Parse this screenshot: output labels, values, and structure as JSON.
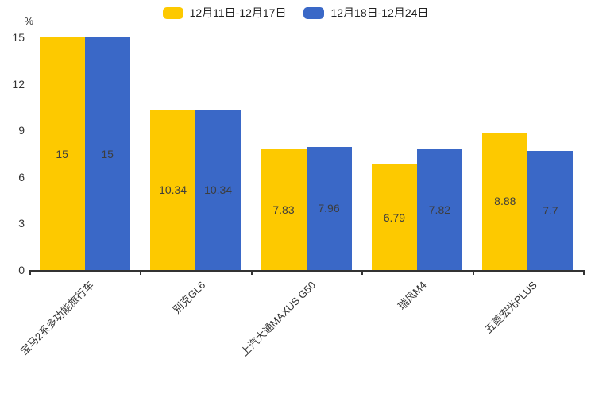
{
  "chart_data": {
    "type": "bar",
    "title": "",
    "categories": [
      "宝马2系多功能旅行车",
      "别克GL6",
      "上汽大通MAXUS G50",
      "瑞风M4",
      "五菱宏光PLUS"
    ],
    "series": [
      {
        "name": "12月11日-12月17日",
        "color": "#FDC900",
        "values": [
          15,
          10.34,
          7.83,
          6.79,
          8.88
        ]
      },
      {
        "name": "12月18日-12月24日",
        "color": "#3A68C7",
        "values": [
          15,
          10.34,
          7.96,
          7.82,
          7.7
        ]
      }
    ],
    "xlabel": "",
    "ylabel": "%",
    "ylim": [
      0,
      15
    ],
    "yticks": [
      0,
      3,
      6,
      9,
      12,
      15
    ],
    "grid": false,
    "legend_position": "top",
    "value_labels": "inside-center",
    "xtick_label_rotation_deg": 45
  },
  "colors": {
    "axis": "#333333",
    "tick_text": "#333333",
    "value_label_text": "#3d3d3d",
    "background": "#ffffff"
  }
}
